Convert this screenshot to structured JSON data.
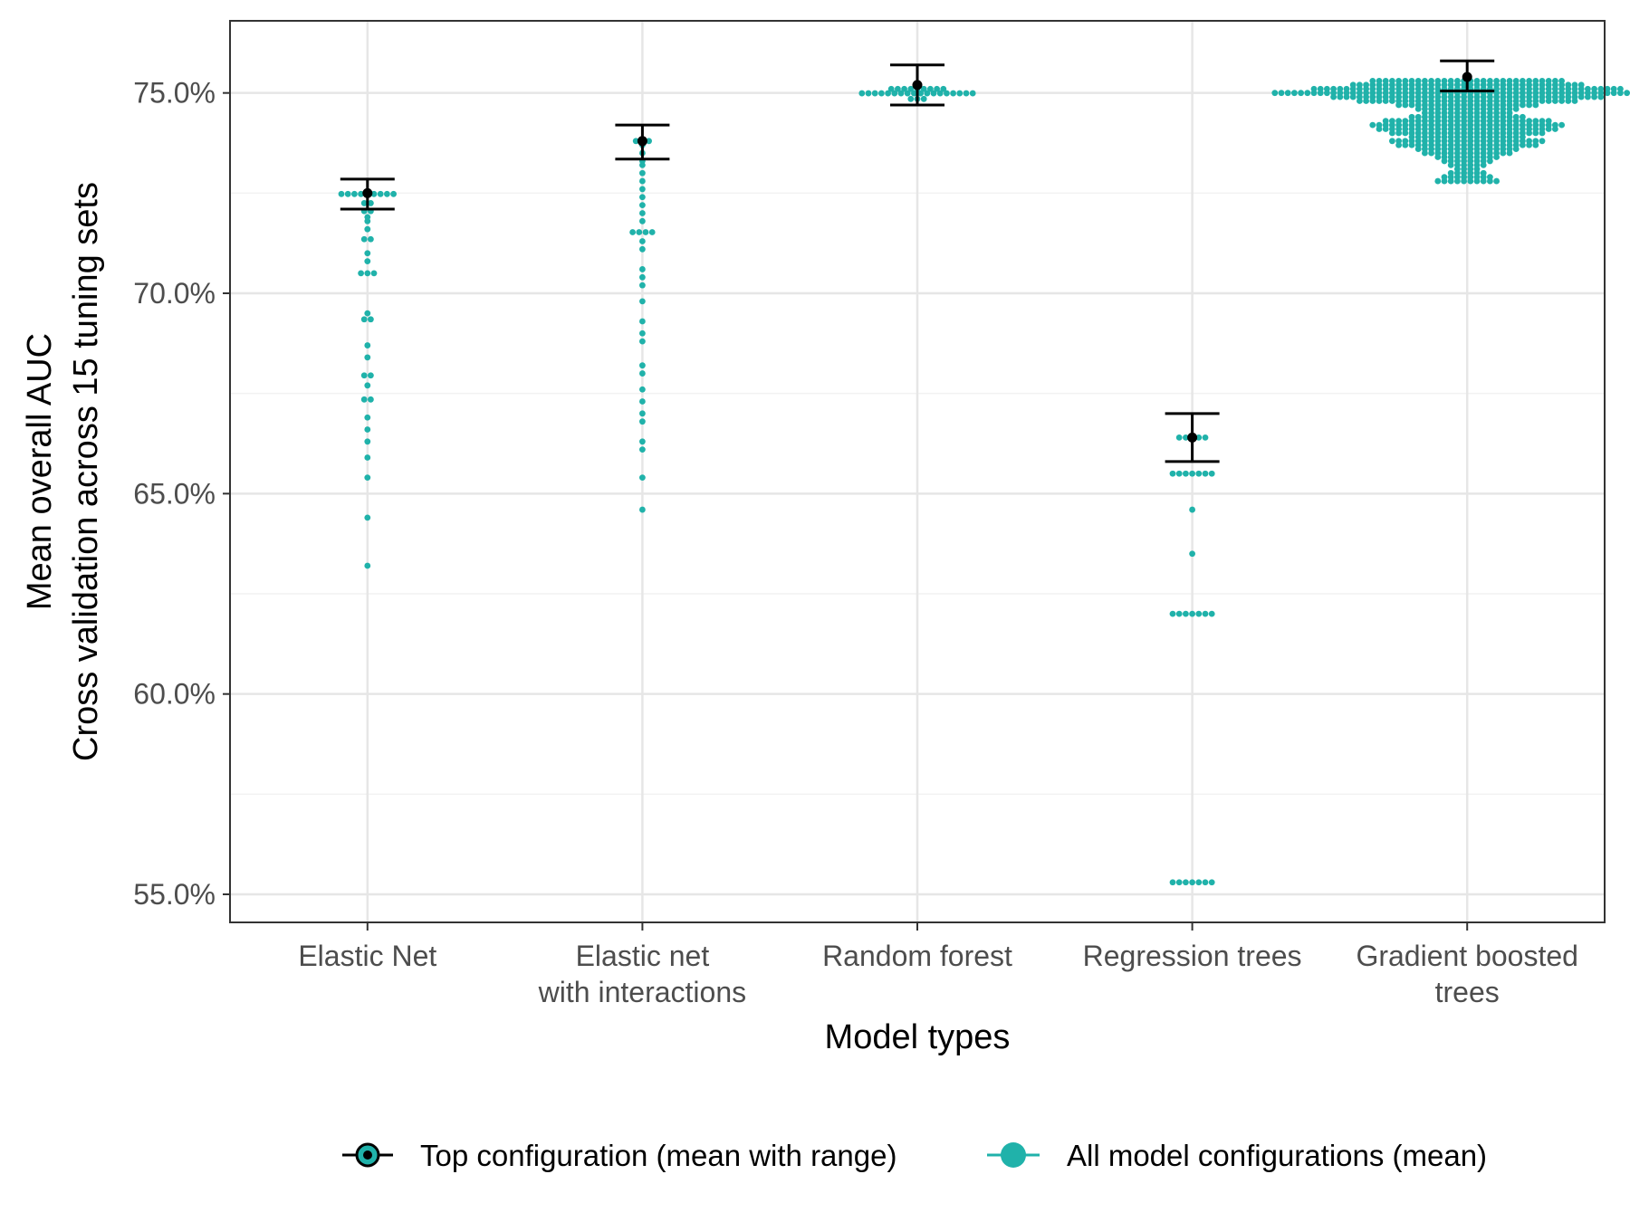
{
  "colors": {
    "points": "#20b2aa",
    "top_config": "#000000",
    "grid_major": "#e6e6e6",
    "grid_minor": "#f2f2f2",
    "panel_border": "#333333",
    "tick_text": "#4d4d4d"
  },
  "chart_data": {
    "type": "scatter",
    "variant": "beeswarm with error bars",
    "xlabel": "Model types",
    "ylabel_lines": [
      "Mean overall AUC",
      "Cross validation across 15 tuning sets"
    ],
    "ylim": [
      54.3,
      76.8
    ],
    "yticks": [
      55,
      60,
      65,
      70,
      75
    ],
    "ytick_labels": [
      "55.0%",
      "60.0%",
      "65.0%",
      "70.0%",
      "75.0%"
    ],
    "grid": true,
    "legend_position": "bottom",
    "categories": [
      [
        "Elastic Net"
      ],
      [
        "Elastic net",
        "with interactions"
      ],
      [
        "Random forest"
      ],
      [
        "Regression trees"
      ],
      [
        "Gradient boosted",
        "trees"
      ]
    ],
    "series": [
      {
        "name": "Top configuration (mean with range)",
        "mean": [
          72.5,
          73.8,
          75.2,
          66.4,
          75.4
        ],
        "low": [
          72.1,
          73.35,
          74.7,
          65.8,
          75.05
        ],
        "high": [
          72.85,
          74.2,
          75.7,
          67.0,
          75.8
        ]
      },
      {
        "name": "All model configurations (mean)",
        "points": [
          {
            "category": 0,
            "values": [
              72.5,
              72.5,
              72.5,
              72.5,
              72.5,
              72.5,
              72.5,
              72.4,
              72.4,
              72.3,
              72.2,
              72.1,
              72.0,
              71.9,
              71.8,
              71.6,
              71.4,
              71.3,
              71.0,
              70.8,
              70.5,
              70.5,
              70.5,
              69.5,
              69.4,
              69.3,
              68.7,
              68.4,
              68.0,
              67.9,
              67.7,
              67.4,
              67.3,
              66.9,
              66.6,
              66.3,
              65.9,
              65.4,
              64.4,
              63.2
            ]
          },
          {
            "category": 1,
            "values": [
              73.8,
              73.8,
              73.8,
              73.7,
              73.5,
              73.3,
              73.2,
              73.0,
              72.8,
              72.6,
              72.4,
              72.2,
              72.0,
              71.8,
              71.6,
              71.5,
              71.5,
              71.5,
              71.3,
              71.1,
              70.6,
              70.4,
              70.2,
              69.8,
              69.3,
              69.0,
              68.8,
              68.2,
              68.0,
              67.6,
              67.3,
              67.0,
              66.8,
              66.3,
              66.1,
              65.4,
              64.6
            ]
          },
          {
            "category": 2,
            "values": [
              75.1,
              75.1,
              75.1,
              75.1,
              75.1,
              75.1,
              75.1,
              75.1,
              75.1,
              75.05,
              75.05,
              75.05,
              75.05,
              75.05,
              75.05,
              75.0,
              75.0,
              75.0,
              75.0,
              75.0,
              75.0,
              74.95,
              74.95,
              74.95,
              74.9,
              74.9,
              74.9,
              74.85,
              74.85,
              74.85
            ]
          },
          {
            "category": 3,
            "values": [
              66.4,
              66.4,
              66.4,
              66.4,
              66.4,
              65.5,
              65.5,
              65.5,
              65.5,
              65.5,
              65.5,
              65.5,
              64.6,
              63.5,
              62.0,
              62.0,
              62.0,
              62.0,
              62.0,
              62.0,
              62.0,
              55.3,
              55.3,
              55.3,
              55.3,
              55.3,
              55.3,
              55.3
            ]
          },
          {
            "category": 4,
            "bins": [
              [
                75.3,
                30
              ],
              [
                75.2,
                36
              ],
              [
                75.1,
                48
              ],
              [
                75.0,
                60
              ],
              [
                74.9,
                42
              ],
              [
                74.8,
                34
              ],
              [
                74.7,
                22
              ],
              [
                74.6,
                16
              ],
              [
                74.5,
                14
              ],
              [
                74.4,
                18
              ],
              [
                74.3,
                26
              ],
              [
                74.2,
                30
              ],
              [
                74.1,
                28
              ],
              [
                74.0,
                24
              ],
              [
                73.9,
                18
              ],
              [
                73.8,
                24
              ],
              [
                73.7,
                22
              ],
              [
                73.6,
                16
              ],
              [
                73.5,
                14
              ],
              [
                73.4,
                10
              ],
              [
                73.3,
                8
              ],
              [
                73.2,
                6
              ],
              [
                73.1,
                4
              ],
              [
                73.0,
                6
              ],
              [
                72.9,
                8
              ],
              [
                72.8,
                10
              ]
            ]
          }
        ]
      }
    ]
  }
}
